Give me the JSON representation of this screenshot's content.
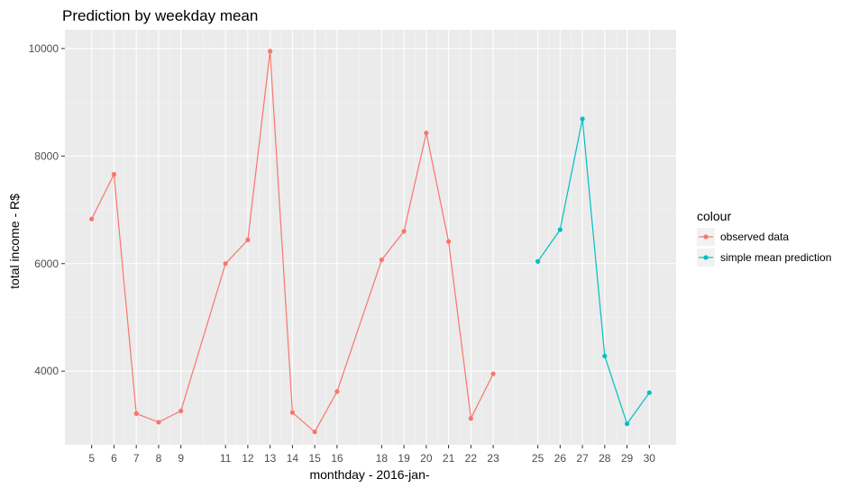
{
  "chart_data": {
    "type": "line",
    "title": "Prediction by weekday mean",
    "xlabel": "monthday - 2016-jan-",
    "ylabel": "total income - R$",
    "xlim": [
      3.8,
      31.2
    ],
    "ylim": [
      2630,
      10350
    ],
    "x_ticks": [
      5,
      6,
      7,
      8,
      9,
      11,
      12,
      13,
      14,
      15,
      16,
      18,
      19,
      20,
      21,
      22,
      23,
      25,
      26,
      27,
      28,
      29,
      30
    ],
    "y_ticks": [
      4000,
      6000,
      8000,
      10000
    ],
    "grid": true,
    "legend": {
      "title": "colour",
      "position": "right"
    },
    "series": [
      {
        "name": "observed data",
        "color": "#F8766D",
        "x": [
          5,
          6,
          7,
          8,
          9,
          11,
          12,
          13,
          14,
          15,
          16,
          18,
          19,
          20,
          21,
          22,
          23
        ],
        "y": [
          6830,
          7660,
          3210,
          3050,
          3260,
          6000,
          6440,
          9950,
          3230,
          2870,
          3620,
          6070,
          6600,
          8430,
          6410,
          3120,
          3950
        ]
      },
      {
        "name": "simple mean prediction",
        "color": "#00BFC4",
        "x": [
          25,
          26,
          27,
          28,
          29,
          30
        ],
        "y": [
          6040,
          6630,
          8690,
          4280,
          3020,
          3600
        ]
      }
    ]
  }
}
